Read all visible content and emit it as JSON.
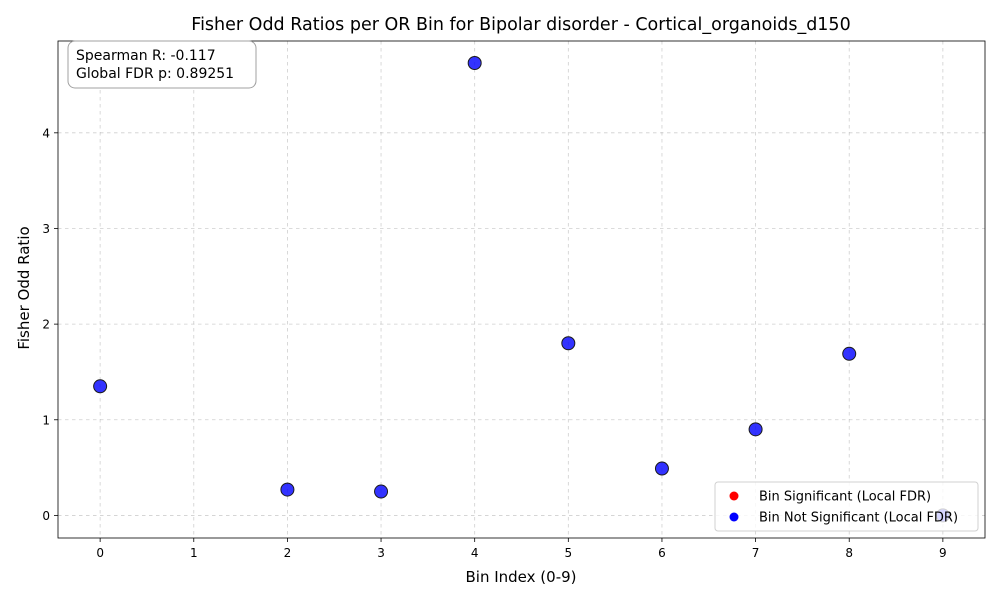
{
  "chart_data": {
    "type": "scatter",
    "title": "Fisher Odd Ratios per OR Bin for Bipolar disorder - Cortical_organoids_d150",
    "xlabel": "Bin Index (0-9)",
    "ylabel": "Fisher Odd Ratio",
    "xlim": [
      -0.45,
      9.45
    ],
    "ylim": [
      -0.236,
      4.96
    ],
    "xticks": [
      "0",
      "1",
      "2",
      "3",
      "4",
      "5",
      "6",
      "7",
      "8",
      "9"
    ],
    "yticks": [
      "0",
      "1",
      "2",
      "3",
      "4"
    ],
    "grid": true,
    "series": [
      {
        "name": "Bin Not Significant (Local FDR)",
        "color": "#0000ff",
        "x": [
          0,
          2,
          3,
          4,
          5,
          6,
          7,
          8,
          9
        ],
        "y": [
          1.35,
          0.27,
          0.25,
          4.73,
          1.8,
          0.49,
          0.9,
          1.69,
          0.0
        ]
      },
      {
        "name": "Bin Significant (Local FDR)",
        "color": "#ff0000",
        "x": [],
        "y": []
      }
    ],
    "legend": {
      "position": "lower-right",
      "entries": [
        {
          "label": "Bin Significant (Local FDR)",
          "color": "#ff0000"
        },
        {
          "label": "Bin Not Significant (Local FDR)",
          "color": "#0000ff"
        }
      ]
    },
    "annotation": {
      "position": "top-left",
      "lines": [
        "Spearman R: -0.117",
        "Global FDR p: 0.89251"
      ]
    }
  }
}
